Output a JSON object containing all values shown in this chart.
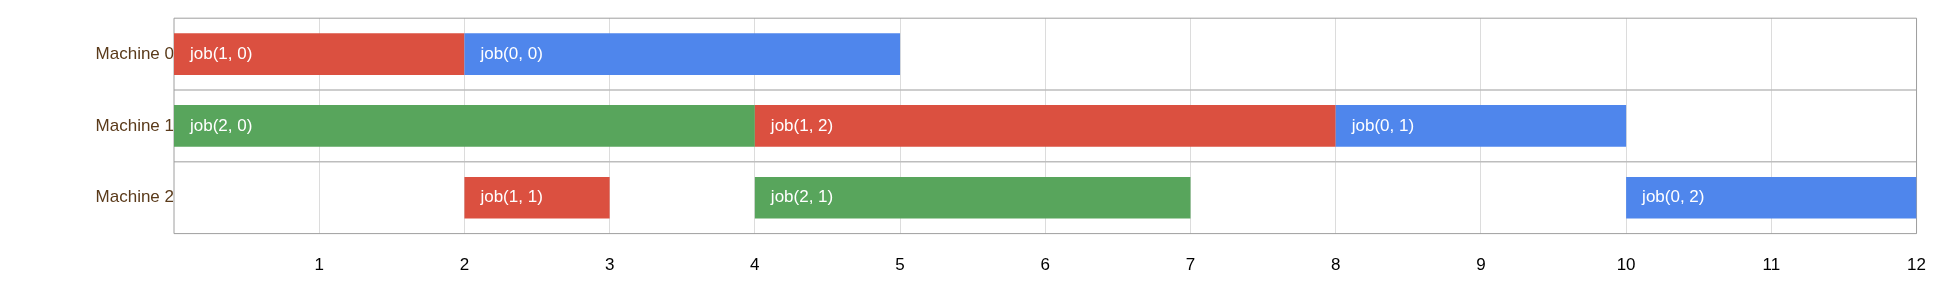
{
  "chart_data": {
    "type": "bar",
    "orientation": "horizontal",
    "stacked": false,
    "categories": [
      "Machine 0",
      "Machine 1",
      "Machine 2"
    ],
    "series": [
      {
        "color": "#4f86ec",
        "base": [
          2,
          8,
          10
        ],
        "values": [
          3,
          2,
          2
        ],
        "value_labels": [
          "job(0, 0)",
          "job(0, 1)",
          "job(0, 2)"
        ]
      },
      {
        "color": "#db5040",
        "base": [
          0,
          4,
          2
        ],
        "values": [
          2,
          4,
          1
        ],
        "value_labels": [
          "job(1, 0)",
          "job(1, 2)",
          "job(1, 1)"
        ]
      },
      {
        "color": "#58a55c",
        "base": [
          null,
          0,
          4
        ],
        "values": [
          null,
          4,
          3
        ],
        "value_labels": [
          null,
          "job(2, 0)",
          "job(2, 1)"
        ]
      }
    ],
    "xlim": [
      0,
      12
    ],
    "xticks": [
      1,
      2,
      3,
      4,
      5,
      6,
      7,
      8,
      9,
      10,
      11,
      12
    ],
    "grid": "x",
    "legend": false
  }
}
